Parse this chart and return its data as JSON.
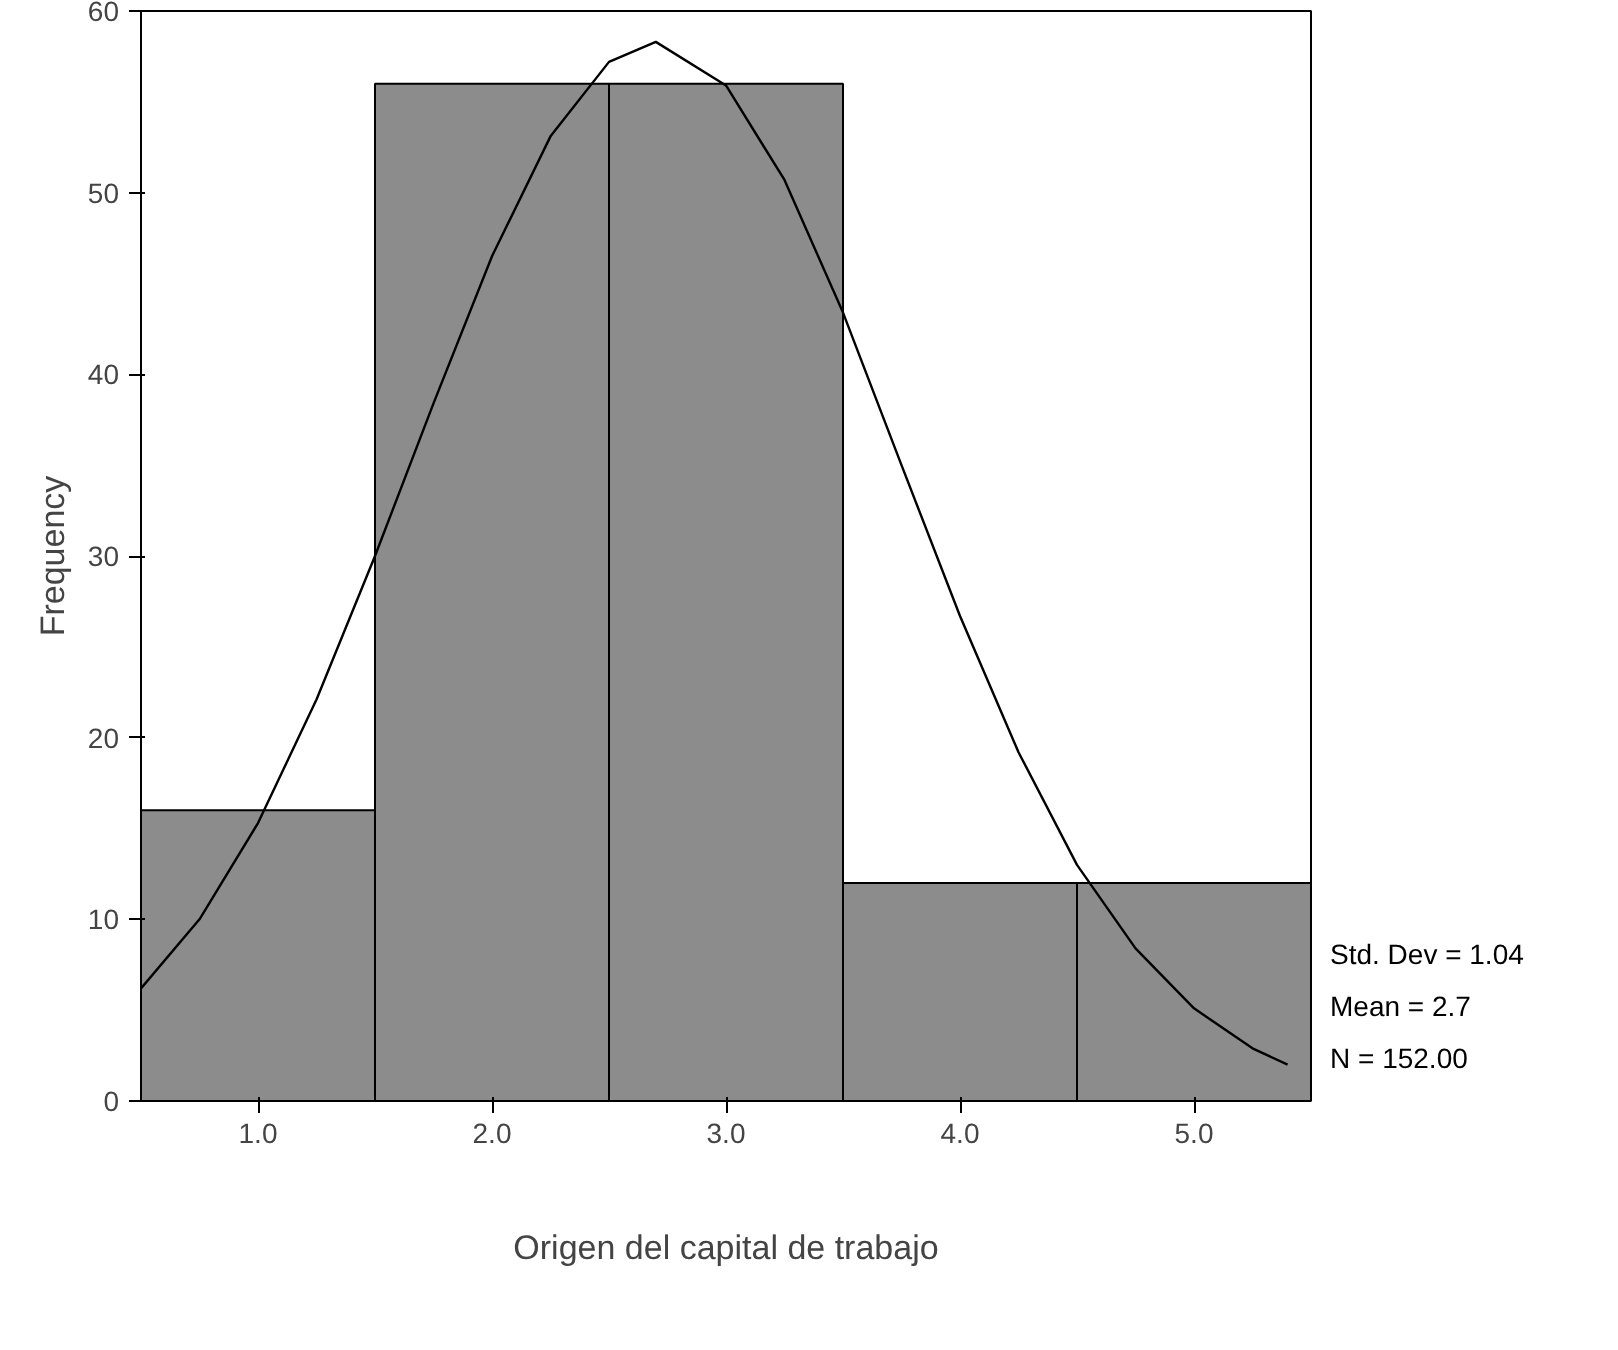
{
  "chart_data": {
    "type": "histogram",
    "xlabel": "Origen del capital de trabajo",
    "ylabel": "Frequency",
    "bins": [
      0.5,
      1.5,
      2.5,
      3.5,
      4.5,
      5.5
    ],
    "series": [
      {
        "color": "#8c8c8c",
        "values": [
          16,
          56,
          56,
          12,
          12
        ]
      },
      {
        "type": "line",
        "color": "#000000",
        "x": [
          0.5,
          0.75,
          1.0,
          1.25,
          1.5,
          1.75,
          2.0,
          2.25,
          2.5,
          2.7,
          3.0,
          3.25,
          3.5,
          3.75,
          4.0,
          4.25,
          4.5,
          4.75,
          5.0,
          5.25,
          5.4
        ],
        "values": [
          6.2,
          10.0,
          15.3,
          22.1,
          30.0,
          38.4,
          46.5,
          53.1,
          57.2,
          58.3,
          55.9,
          50.7,
          43.4,
          35.0,
          26.7,
          19.2,
          13.0,
          8.4,
          5.1,
          2.9,
          2.0
        ]
      }
    ],
    "xlim": [
      0.5,
      5.5
    ],
    "ylim": [
      0,
      60
    ],
    "xticks": [
      {
        "value": 1,
        "label": "1.0"
      },
      {
        "value": 2,
        "label": "2.0"
      },
      {
        "value": 3,
        "label": "3.0"
      },
      {
        "value": 4,
        "label": "4.0"
      },
      {
        "value": 5,
        "label": "5.0"
      }
    ],
    "yticks": [
      0,
      10,
      20,
      30,
      40,
      50,
      60
    ],
    "grid": false,
    "annotations": [
      "Std. Dev = 1.04",
      "Mean = 2.7",
      "N = 152.00"
    ]
  }
}
